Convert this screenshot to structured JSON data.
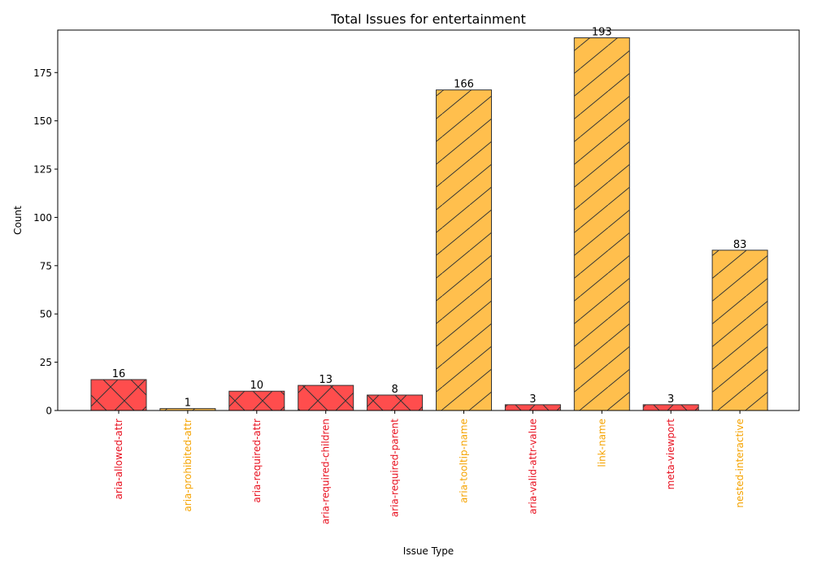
{
  "chart_data": {
    "type": "bar",
    "title": "Total Issues for entertainment",
    "xlabel": "Issue Type",
    "ylabel": "Count",
    "ylim": [
      0,
      197
    ],
    "yticks": [
      0,
      25,
      50,
      75,
      100,
      125,
      150,
      175
    ],
    "grid": false,
    "categories": [
      "aria-allowed-attr",
      "aria-prohibited-attr",
      "aria-required-attr",
      "aria-required-children",
      "aria-required-parent",
      "aria-tooltip-name",
      "aria-valid-attr-value",
      "link-name",
      "meta-viewport",
      "nested-interactive"
    ],
    "values": [
      16,
      1,
      10,
      13,
      8,
      166,
      3,
      193,
      3,
      83
    ],
    "severity": [
      "critical",
      "serious",
      "critical",
      "critical",
      "critical",
      "serious",
      "critical",
      "serious",
      "critical",
      "serious"
    ],
    "colors": {
      "critical": "#ff4d4d",
      "serious": "#ffbf4d",
      "critical_label": "#e8101f",
      "serious_label": "#f5a300",
      "edge": "#333333"
    },
    "hatch": {
      "critical": "cross",
      "serious": "diagonal"
    }
  }
}
